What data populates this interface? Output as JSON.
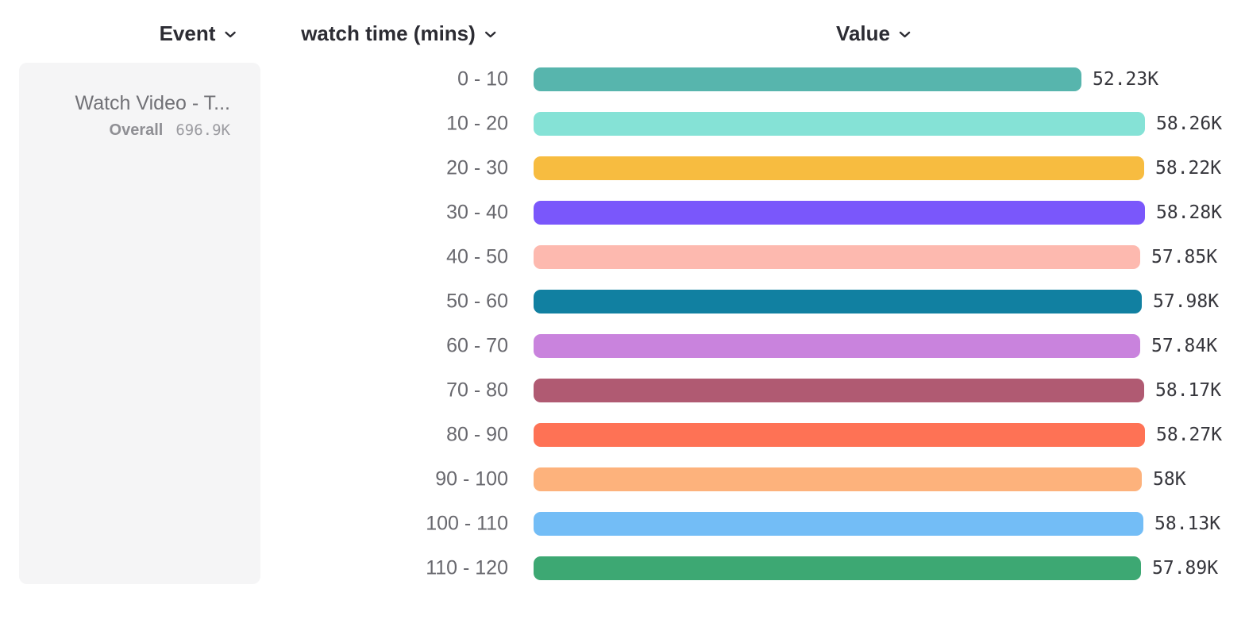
{
  "header": {
    "columns": [
      {
        "label": "Event"
      },
      {
        "label": "watch time (mins)"
      },
      {
        "label": "Value"
      }
    ]
  },
  "event_card": {
    "name": "Watch Video - T...",
    "overall_label": "Overall",
    "overall_value": "696.9K"
  },
  "chart_data": {
    "type": "bar",
    "orientation": "horizontal",
    "title": "",
    "xlabel": "Value",
    "ylabel": "watch time (mins)",
    "categories": [
      "0 - 10",
      "10 - 20",
      "20 - 30",
      "30 - 40",
      "40 - 50",
      "50 - 60",
      "60 - 70",
      "70 - 80",
      "80 - 90",
      "90 - 100",
      "100 - 110",
      "110 - 120"
    ],
    "values": [
      52230,
      58260,
      58220,
      58280,
      57850,
      57980,
      57840,
      58170,
      58270,
      58000,
      58130,
      57890
    ],
    "value_labels": [
      "52.23K",
      "58.26K",
      "58.22K",
      "58.28K",
      "57.85K",
      "57.98K",
      "57.84K",
      "58.17K",
      "58.27K",
      "58K",
      "58.13K",
      "57.89K"
    ],
    "bar_colors": [
      "#57b5ad",
      "#85e2d6",
      "#f7bc40",
      "#7a57fb",
      "#fdb9af",
      "#1180a1",
      "#c983dd",
      "#b05a72",
      "#fe7255",
      "#fdb27c",
      "#73bdf6",
      "#3da873"
    ],
    "xlim": [
      0,
      58280
    ],
    "grid": false,
    "legend": "none"
  },
  "icons": {
    "chevron_color": "#2c2c33"
  }
}
